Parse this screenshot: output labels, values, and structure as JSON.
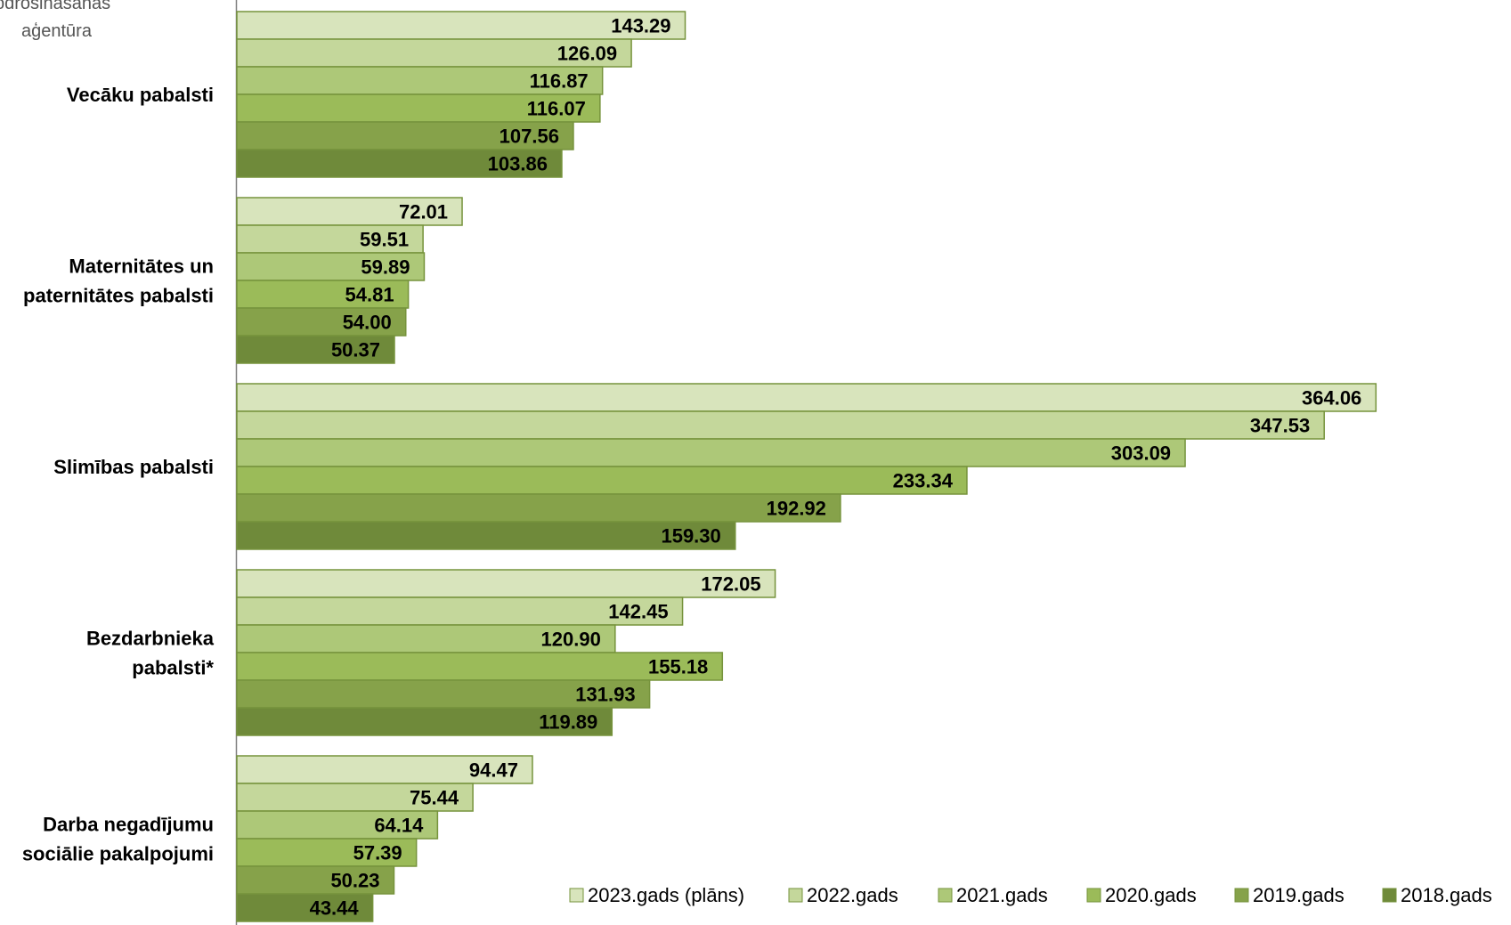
{
  "logo": {
    "line1": "pdrošināšanas",
    "line2": "aģentūra"
  },
  "chart_data": {
    "type": "bar",
    "orientation": "horizontal",
    "categories": [
      [
        "Vecāku pabalsti"
      ],
      [
        "Maternitātes un",
        "paternitātes pabalsti"
      ],
      [
        "Slimības pabalsti"
      ],
      [
        "Bezdarbnieka",
        "pabalsti*"
      ],
      [
        "Darba negadījumu",
        "sociālie pakalpojumi"
      ]
    ],
    "series": [
      {
        "name": "2023.gads (plāns)",
        "color": "#d8e4bc",
        "values": [
          143.29,
          72.01,
          364.06,
          172.05,
          94.47
        ]
      },
      {
        "name": "2022.gads",
        "color": "#c4d79b",
        "values": [
          126.09,
          59.51,
          347.53,
          142.45,
          75.44
        ]
      },
      {
        "name": "2021.gads",
        "color": "#adc878",
        "values": [
          116.87,
          59.89,
          303.09,
          120.9,
          64.14
        ]
      },
      {
        "name": "2020.gads",
        "color": "#9bbb59",
        "values": [
          116.07,
          54.81,
          233.34,
          155.18,
          57.39
        ]
      },
      {
        "name": "2019.gads",
        "color": "#86a24a",
        "values": [
          107.56,
          54.0,
          192.92,
          131.93,
          50.23
        ]
      },
      {
        "name": "2018.gads",
        "color": "#6f8a3a",
        "values": [
          103.86,
          50.37,
          159.3,
          119.89,
          43.44
        ]
      }
    ],
    "value_format": "2 decimals",
    "legend_position": "bottom-right",
    "grid": false,
    "bar_border_color": "#76933c"
  }
}
